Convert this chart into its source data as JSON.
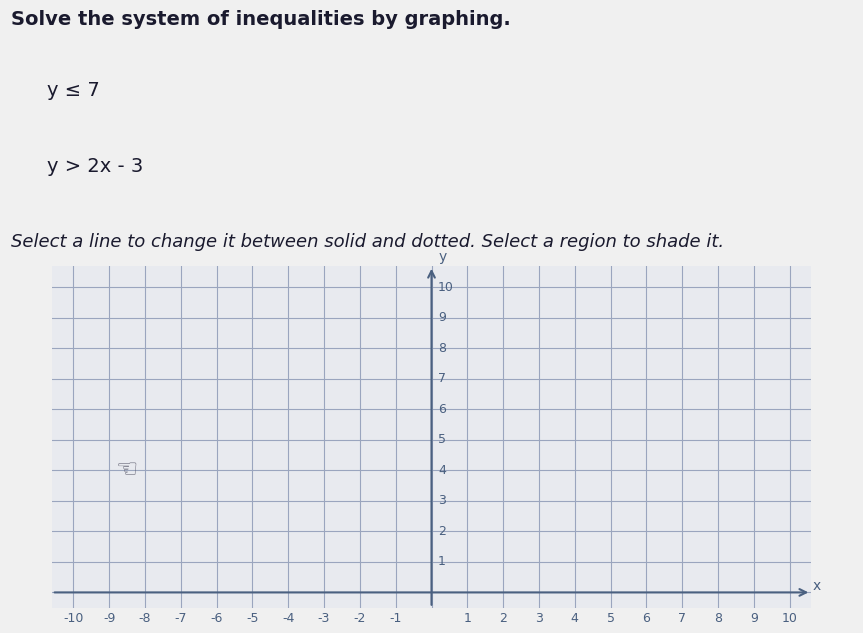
{
  "title_line1": "Solve the system of inequalities by graphing.",
  "title_line2": "y ≤ 7",
  "title_line3": "y > 2x - 3",
  "title_line4": "Select a line to change it between solid and dotted. Select a region to shade it.",
  "xlim": [
    -10,
    10
  ],
  "ylim": [
    0,
    10
  ],
  "bg_outer": "#f0f0f0",
  "bg_graph": "#e8eaef",
  "grid_color": "#9aa5be",
  "axis_color": "#4a6080",
  "text_color": "#1a1a2e",
  "label_color": "#5577aa",
  "font_size_title": 14,
  "font_size_eq": 14,
  "font_size_select": 13,
  "font_size_tick": 9,
  "cursor_x": -8.5,
  "cursor_y": 4.0
}
